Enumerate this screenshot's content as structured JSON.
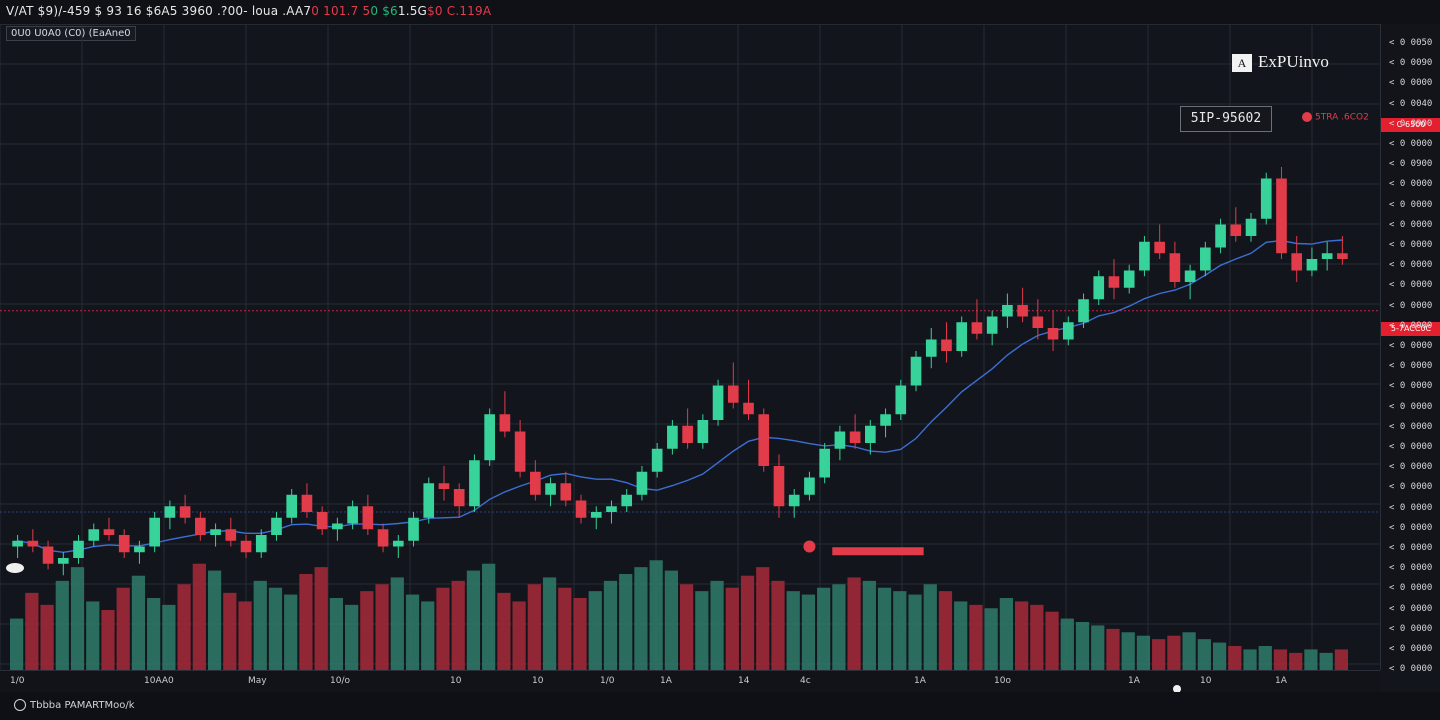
{
  "header": {
    "symbol_parts": [
      {
        "text": "V/AT $9)/-459 $ 93 16 $6A5 3960 .?00-  loua .",
        "color": "white"
      },
      {
        "text": "AA7",
        "color": "white"
      },
      {
        "text": "0 101.7 5",
        "color": "red"
      },
      {
        "text": "0 $6",
        "color": "green"
      },
      {
        "text": "1.5G",
        "color": "white"
      },
      {
        "text": "$0 C.119A",
        "color": "red"
      }
    ],
    "sub_label": "0U0 U0A0 (C0) (EaAne0"
  },
  "brand": {
    "text": "ExPUinvo",
    "mark_icon": "brand-logo-icon"
  },
  "tooltip": {
    "value": "5IP-95602"
  },
  "alert": {
    "text": "5TRA .6CO2"
  },
  "price_axis": {
    "ticks": [
      "< 0 0050",
      "< 0 0090",
      "< 0 0000",
      "< 0 0040",
      "< 0 0900",
      "< 0 0000",
      "< 0 0900",
      "< 0 0000",
      "< 0 0000",
      "< 0 0000",
      "< 0 0000",
      "< 0 0000",
      "< 0 0000",
      "< 0 0000",
      "< 0 0000",
      "< 0 0000",
      "< 0 0000",
      "< 0 0000",
      "< 0 0000",
      "< 0 0000",
      "< 0 0000",
      "< 0 0000",
      "< 0 0000",
      "< 0 0000",
      "< 0 0000",
      "< 0 0000",
      "< 0 0000",
      "< 0 0000",
      "< 0 0000",
      "< 0 0000",
      "< 0 0000",
      "< 0 0000"
    ],
    "current_price_tag": "C-6500",
    "level_tag": "5-7ACC0C"
  },
  "time_axis": {
    "ticks": [
      {
        "label": "1/0"
      },
      {
        "label": "10AA0"
      },
      {
        "label": "May"
      },
      {
        "label": "10/o"
      },
      {
        "label": "10"
      },
      {
        "label": "10"
      },
      {
        "label": "1/0"
      },
      {
        "label": "1A"
      },
      {
        "label": "14"
      },
      {
        "label": "4c"
      },
      {
        "label": "1A"
      },
      {
        "label": "10o"
      },
      {
        "label": "1A"
      },
      {
        "label": "10"
      },
      {
        "label": "1A"
      }
    ]
  },
  "footer": {
    "logo_text": "Tbbba PAMARTMoo/k"
  },
  "colors": {
    "background": "#13151c",
    "up": "#37d39a",
    "down": "#e23b4a",
    "grid": "#262a33",
    "ma_line": "#3b6fd6",
    "level_line": "#c8253a"
  },
  "chart_data": {
    "type": "candlestick",
    "candles": [
      [
        50,
        52,
        48,
        51
      ],
      [
        51,
        53,
        49,
        50
      ],
      [
        50,
        51,
        46,
        47
      ],
      [
        47,
        49,
        45,
        48
      ],
      [
        48,
        52,
        47,
        51
      ],
      [
        51,
        54,
        50,
        53
      ],
      [
        53,
        55,
        51,
        52
      ],
      [
        52,
        53,
        48,
        49
      ],
      [
        49,
        51,
        47,
        50
      ],
      [
        50,
        56,
        49,
        55
      ],
      [
        55,
        58,
        53,
        57
      ],
      [
        57,
        59,
        54,
        55
      ],
      [
        55,
        56,
        51,
        52
      ],
      [
        52,
        54,
        50,
        53
      ],
      [
        53,
        55,
        50,
        51
      ],
      [
        51,
        52,
        48,
        49
      ],
      [
        49,
        53,
        48,
        52
      ],
      [
        52,
        56,
        51,
        55
      ],
      [
        55,
        60,
        54,
        59
      ],
      [
        59,
        61,
        55,
        56
      ],
      [
        56,
        57,
        52,
        53
      ],
      [
        53,
        55,
        51,
        54
      ],
      [
        54,
        58,
        53,
        57
      ],
      [
        57,
        59,
        52,
        53
      ],
      [
        53,
        54,
        49,
        50
      ],
      [
        50,
        52,
        48,
        51
      ],
      [
        51,
        56,
        50,
        55
      ],
      [
        55,
        62,
        54,
        61
      ],
      [
        61,
        64,
        58,
        60
      ],
      [
        60,
        61,
        55,
        57
      ],
      [
        57,
        66,
        56,
        65
      ],
      [
        65,
        74,
        64,
        73
      ],
      [
        73,
        77,
        69,
        70
      ],
      [
        70,
        72,
        62,
        63
      ],
      [
        63,
        65,
        58,
        59
      ],
      [
        59,
        62,
        57,
        61
      ],
      [
        61,
        63,
        57,
        58
      ],
      [
        58,
        59,
        54,
        55
      ],
      [
        55,
        57,
        53,
        56
      ],
      [
        56,
        58,
        54,
        57
      ],
      [
        57,
        60,
        56,
        59
      ],
      [
        59,
        64,
        58,
        63
      ],
      [
        63,
        68,
        62,
        67
      ],
      [
        67,
        72,
        66,
        71
      ],
      [
        71,
        74,
        67,
        68
      ],
      [
        68,
        73,
        67,
        72
      ],
      [
        72,
        79,
        71,
        78
      ],
      [
        78,
        82,
        74,
        75
      ],
      [
        75,
        79,
        72,
        73
      ],
      [
        73,
        74,
        63,
        64
      ],
      [
        64,
        66,
        55,
        57
      ],
      [
        57,
        60,
        55,
        59
      ],
      [
        59,
        63,
        58,
        62
      ],
      [
        62,
        68,
        61,
        67
      ],
      [
        67,
        71,
        65,
        70
      ],
      [
        70,
        73,
        67,
        68
      ],
      [
        68,
        72,
        66,
        71
      ],
      [
        71,
        74,
        69,
        73
      ],
      [
        73,
        79,
        72,
        78
      ],
      [
        78,
        84,
        77,
        83
      ],
      [
        83,
        88,
        81,
        86
      ],
      [
        86,
        89,
        82,
        84
      ],
      [
        84,
        90,
        83,
        89
      ],
      [
        89,
        93,
        86,
        87
      ],
      [
        87,
        91,
        85,
        90
      ],
      [
        90,
        94,
        88,
        92
      ],
      [
        92,
        95,
        89,
        90
      ],
      [
        90,
        93,
        86,
        88
      ],
      [
        88,
        91,
        84,
        86
      ],
      [
        86,
        90,
        85,
        89
      ],
      [
        89,
        94,
        88,
        93
      ],
      [
        93,
        98,
        92,
        97
      ],
      [
        97,
        100,
        93,
        95
      ],
      [
        95,
        99,
        94,
        98
      ],
      [
        98,
        104,
        97,
        103
      ],
      [
        103,
        106,
        100,
        101
      ],
      [
        101,
        103,
        95,
        96
      ],
      [
        96,
        99,
        93,
        98
      ],
      [
        98,
        103,
        97,
        102
      ],
      [
        102,
        107,
        101,
        106
      ],
      [
        106,
        109,
        103,
        104
      ],
      [
        104,
        108,
        103,
        107
      ],
      [
        107,
        115,
        106,
        114
      ],
      [
        114,
        116,
        100,
        101
      ],
      [
        101,
        104,
        96,
        98
      ],
      [
        98,
        102,
        97,
        100
      ],
      [
        100,
        103,
        98,
        101
      ],
      [
        101,
        104,
        99,
        100
      ]
    ],
    "volume_series": [
      {
        "name": "",
        "values": [
          30,
          45,
          38,
          52,
          60,
          40,
          35,
          48,
          55,
          42,
          38,
          50,
          62,
          58,
          45,
          40,
          52,
          48,
          44,
          56,
          60,
          42,
          38,
          46,
          50,
          54,
          44,
          40,
          48,
          52,
          58,
          62,
          45,
          40,
          50,
          54,
          48,
          42,
          46,
          52,
          56,
          60,
          64,
          58,
          50,
          46,
          52,
          48,
          55,
          60,
          52,
          46,
          44,
          48,
          50,
          54,
          52,
          48,
          46,
          44,
          50,
          46,
          40,
          38,
          36,
          42,
          40,
          38,
          34,
          30,
          28,
          26,
          24,
          22,
          20,
          18,
          20,
          22,
          18,
          16,
          14,
          12,
          14,
          12,
          10,
          12,
          10,
          12
        ]
      }
    ],
    "ma_series": [
      {
        "name": "",
        "color": "#3b6fd6"
      }
    ],
    "horizontal_levels": [
      {
        "value": 91,
        "color": "#c8253a"
      },
      {
        "value": 56,
        "color": "#2b3e8a"
      }
    ],
    "markers": [
      {
        "type": "dot",
        "index": 52,
        "value": 50
      },
      {
        "type": "band",
        "index_start": 54,
        "index_end": 60,
        "value": 49
      }
    ],
    "grid": true,
    "xlabel": "",
    "ylabel": "",
    "title": ""
  }
}
